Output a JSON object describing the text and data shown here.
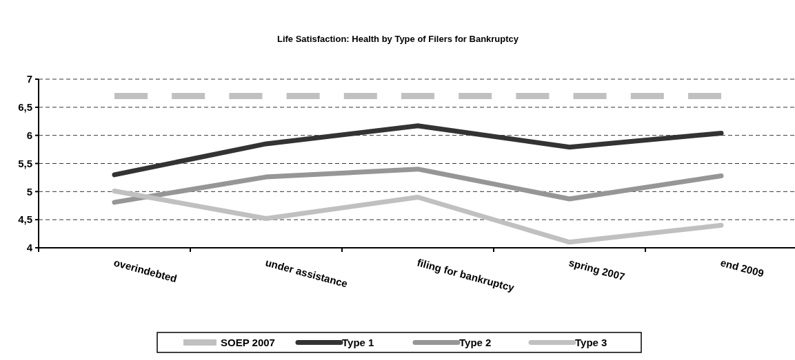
{
  "chart_data": {
    "type": "line",
    "title": "Life Satisfaction: Health by Type of Filers for Bankruptcy",
    "categories": [
      "overindebted",
      "under assistance",
      "filing for bankruptcy",
      "spring 2007",
      "end 2009"
    ],
    "series": [
      {
        "name": "SOEP 2007",
        "color": "#c0c0c0",
        "line_style": "dashed",
        "values": [
          6.7,
          6.7,
          6.7,
          6.7,
          6.7
        ]
      },
      {
        "name": "Type 1",
        "color": "#333333",
        "values": [
          5.3,
          5.85,
          6.17,
          5.79,
          6.04
        ]
      },
      {
        "name": "Type 2",
        "color": "#969696",
        "values": [
          4.81,
          5.26,
          5.4,
          4.87,
          5.28
        ]
      },
      {
        "name": "Type 3",
        "color": "#c0c0c0",
        "values": [
          5.01,
          4.52,
          4.9,
          4.1,
          4.4
        ]
      }
    ],
    "ylim": [
      4,
      7
    ],
    "yticks": [
      4,
      {
        "value": 4.5,
        "label": "4,5"
      },
      5,
      {
        "value": 5.5,
        "label": "5,5"
      },
      6,
      {
        "value": 6.5,
        "label": "6,5"
      },
      7
    ],
    "grid": "y",
    "legend": "bottom",
    "marker": "none",
    "line_style": "solid"
  }
}
